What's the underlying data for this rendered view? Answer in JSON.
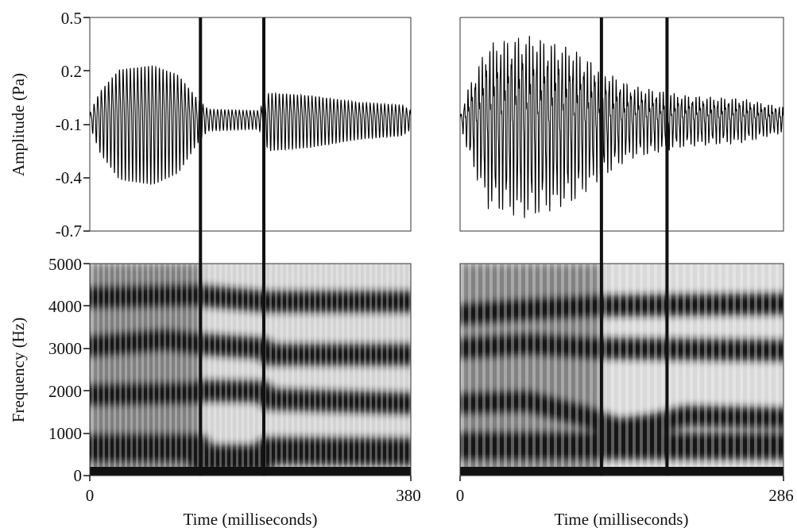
{
  "chart_data": {
    "type": "waveform-spectrogram",
    "amplitude": {
      "ylabel": "Amplitude (Pa)",
      "ylim": [
        -0.7,
        0.5
      ],
      "yticks": [
        "0.5",
        "0.2",
        "-0.1",
        "-0.4",
        "-0.7"
      ]
    },
    "frequency": {
      "ylabel": "Frequency (Hz)",
      "ylim": [
        0,
        5000
      ],
      "yticks": [
        "5000",
        "4000",
        "3000",
        "2000",
        "1000",
        "0"
      ]
    },
    "panels": [
      {
        "xlabel": "Time (milliseconds)",
        "xlim": [
          0,
          380
        ],
        "xtick_start": "0",
        "xtick_end": "380",
        "segment_boundaries_ms": [
          131,
          206
        ],
        "waveform": {
          "carrier_period_ms": 4.3,
          "envelope": [
            [
              0,
              0.04
            ],
            [
              12,
              0.2
            ],
            [
              35,
              0.36
            ],
            [
              75,
              0.39
            ],
            [
              105,
              0.32
            ],
            [
              128,
              0.14
            ],
            [
              140,
              0.07
            ],
            [
              200,
              0.06
            ],
            [
              212,
              0.19
            ],
            [
              260,
              0.17
            ],
            [
              320,
              0.12
            ],
            [
              370,
              0.1
            ],
            [
              380,
              0.06
            ]
          ],
          "offset": -0.07
        },
        "formants": [
          [
            [
              0,
              650
            ],
            [
              128,
              650
            ],
            [
              132,
              400
            ],
            [
              205,
              400
            ],
            [
              210,
              580
            ],
            [
              380,
              560
            ]
          ],
          [
            [
              0,
              1900
            ],
            [
              128,
              1950
            ],
            [
              133,
              2000
            ],
            [
              205,
              1980
            ],
            [
              212,
              1800
            ],
            [
              380,
              1700
            ]
          ],
          [
            [
              0,
              3050
            ],
            [
              90,
              3200
            ],
            [
              130,
              3100
            ],
            [
              206,
              3000
            ],
            [
              212,
              2850
            ],
            [
              380,
              2850
            ]
          ],
          [
            [
              0,
              4200
            ],
            [
              128,
              4250
            ],
            [
              210,
              4100
            ],
            [
              380,
              4100
            ]
          ]
        ]
      },
      {
        "xlabel": "Time (milliseconds)",
        "xlim": [
          0,
          286
        ],
        "xtick_start": "0",
        "xtick_end": "286",
        "segment_boundaries_ms": [
          125,
          183
        ],
        "waveform": {
          "carrier_period_ms": 3.2,
          "envelope": [
            [
              0,
              0.02
            ],
            [
              8,
              0.2
            ],
            [
              25,
              0.45
            ],
            [
              60,
              0.5
            ],
            [
              100,
              0.42
            ],
            [
              125,
              0.3
            ],
            [
              150,
              0.2
            ],
            [
              200,
              0.14
            ],
            [
              250,
              0.12
            ],
            [
              286,
              0.07
            ]
          ],
          "offset": -0.07
        },
        "formants": [
          [
            [
              0,
              700
            ],
            [
              100,
              700
            ],
            [
              140,
              700
            ],
            [
              286,
              700
            ]
          ],
          [
            [
              0,
              1700
            ],
            [
              60,
              1750
            ],
            [
              110,
              1400
            ],
            [
              140,
              1100
            ],
            [
              170,
              1200
            ],
            [
              200,
              1400
            ],
            [
              286,
              1350
            ]
          ],
          [
            [
              0,
              3800
            ],
            [
              50,
              3900
            ],
            [
              120,
              4000
            ],
            [
              286,
              4050
            ]
          ],
          [
            [
              0,
              3000
            ],
            [
              60,
              3100
            ],
            [
              120,
              3000
            ],
            [
              286,
              2950
            ]
          ]
        ]
      }
    ]
  }
}
